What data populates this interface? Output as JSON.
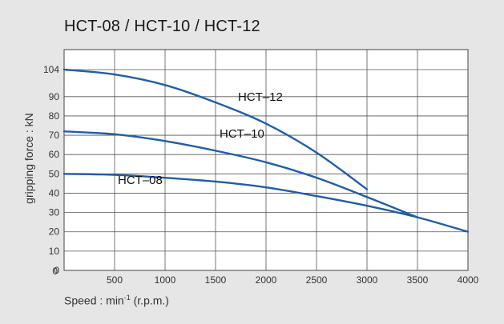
{
  "chart_data": {
    "type": "line",
    "title": "HCT-08 / HCT-10 / HCT-12",
    "xlabel": "Speed : min",
    "xlabel_sup": "-1",
    "xlabel_suffix": " (r.p.m.)",
    "ylabel": "gripping force : kN",
    "xlim": [
      0,
      4000
    ],
    "ylim": [
      0,
      110
    ],
    "xticks": [
      500,
      1000,
      1500,
      2000,
      2500,
      3000,
      3500,
      4000
    ],
    "yticks": [
      0,
      10,
      20,
      30,
      40,
      50,
      60,
      70,
      80,
      90,
      104
    ],
    "x_origin_label": "0",
    "grid": true,
    "line_color": "#1f5ea8",
    "series": [
      {
        "name": "HCT–08",
        "x": [
          0,
          500,
          1000,
          1500,
          2000,
          2500,
          3000,
          3500,
          4000
        ],
        "y": [
          50,
          49.5,
          48,
          46,
          43,
          38.5,
          33.5,
          27.5,
          20
        ]
      },
      {
        "name": "HCT–10",
        "x": [
          0,
          500,
          1000,
          1500,
          2000,
          2500,
          3000,
          3500
        ],
        "y": [
          72,
          70.5,
          67,
          62,
          56,
          48,
          38,
          27.5
        ]
      },
      {
        "name": "HCT–12",
        "x": [
          0,
          500,
          1000,
          1500,
          2000,
          2500,
          3000
        ],
        "y": [
          104,
          101.5,
          96,
          87,
          76,
          61,
          42
        ]
      }
    ]
  }
}
